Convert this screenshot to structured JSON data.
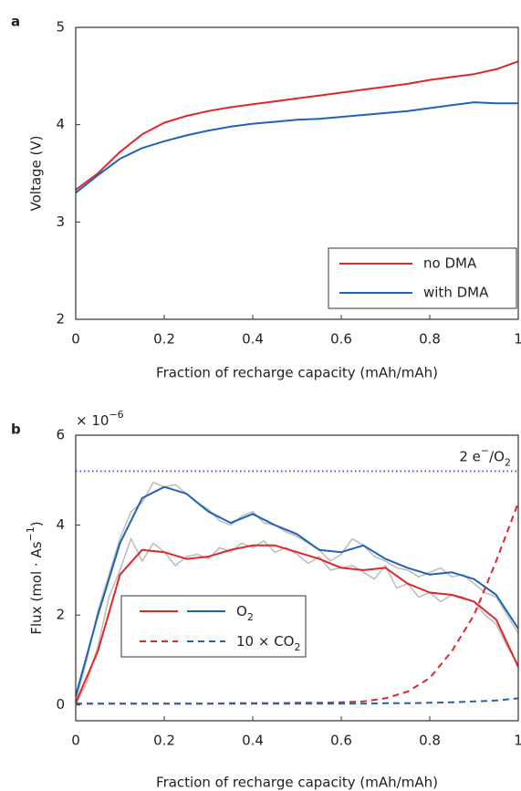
{
  "chart_data": [
    {
      "type": "line",
      "panel_label": "a",
      "x_label": "Fraction of recharge capacity (mAh/mAh)",
      "y_label": "Voltage (V)",
      "xlim": [
        0,
        1
      ],
      "xticks": [
        0,
        0.2,
        0.4,
        0.6,
        0.8,
        1
      ],
      "ylim": [
        2,
        5
      ],
      "yticks": [
        2,
        3,
        4,
        5
      ],
      "legend_position": "lower right",
      "series": [
        {
          "name": "no DMA",
          "color": "#e0262b",
          "dash": false,
          "x": [
            0,
            0.05,
            0.1,
            0.15,
            0.2,
            0.25,
            0.3,
            0.35,
            0.4,
            0.45,
            0.5,
            0.55,
            0.6,
            0.65,
            0.7,
            0.75,
            0.8,
            0.85,
            0.9,
            0.95,
            1
          ],
          "values": [
            3.33,
            3.5,
            3.72,
            3.9,
            4.02,
            4.09,
            4.14,
            4.18,
            4.21,
            4.24,
            4.27,
            4.3,
            4.33,
            4.36,
            4.39,
            4.42,
            4.46,
            4.49,
            4.52,
            4.57,
            4.65
          ]
        },
        {
          "name": "with DMA",
          "color": "#1f64b4",
          "dash": false,
          "x": [
            0,
            0.05,
            0.1,
            0.15,
            0.2,
            0.25,
            0.3,
            0.35,
            0.4,
            0.45,
            0.5,
            0.55,
            0.6,
            0.65,
            0.7,
            0.75,
            0.8,
            0.85,
            0.9,
            0.95,
            1
          ],
          "values": [
            3.3,
            3.48,
            3.65,
            3.76,
            3.83,
            3.89,
            3.94,
            3.98,
            4.01,
            4.03,
            4.05,
            4.06,
            4.08,
            4.1,
            4.12,
            4.14,
            4.17,
            4.2,
            4.23,
            4.22,
            4.22
          ]
        }
      ]
    },
    {
      "type": "line",
      "panel_label": "b",
      "x_label": "Fraction of recharge capacity (mAh/mAh)",
      "y_label": [
        "Flux (mol · As",
        "−1",
        ")"
      ],
      "y_multiplier": [
        "× 10",
        "−6"
      ],
      "xlim": [
        0,
        1
      ],
      "xticks": [
        0,
        0.2,
        0.4,
        0.6,
        0.8,
        1
      ],
      "ylim": [
        -0.35,
        6
      ],
      "yticks": [
        0,
        2,
        4,
        6
      ],
      "reference_line": {
        "value": 5.2,
        "color": "#5a50c8",
        "label": [
          "2 e",
          "−",
          "/O",
          "2"
        ]
      },
      "legend_position": "lower left",
      "legend": [
        {
          "label": [
            "O",
            "2"
          ],
          "colors": [
            "#e0262b",
            "#1f64b4"
          ],
          "dash": false
        },
        {
          "label": [
            "10 × CO",
            "2"
          ],
          "colors": [
            "#e0262b",
            "#1f64b4"
          ],
          "dash": true
        }
      ],
      "series": [
        {
          "color": "#bbbbbb",
          "dash": false,
          "x": [
            0,
            0.025,
            0.05,
            0.075,
            0.1,
            0.125,
            0.15,
            0.175,
            0.2,
            0.225,
            0.25,
            0.275,
            0.3,
            0.325,
            0.35,
            0.375,
            0.4,
            0.425,
            0.45,
            0.475,
            0.5,
            0.525,
            0.55,
            0.575,
            0.6,
            0.625,
            0.65,
            0.675,
            0.7,
            0.725,
            0.75,
            0.775,
            0.8,
            0.825,
            0.85,
            0.875,
            0.9,
            0.925,
            0.95,
            0.975,
            1
          ],
          "values": [
            0.1,
            1.0,
            2.1,
            2.9,
            3.7,
            4.3,
            4.5,
            4.95,
            4.85,
            4.9,
            4.7,
            4.5,
            4.35,
            4.1,
            4.0,
            4.2,
            4.3,
            4.05,
            4.0,
            3.85,
            3.75,
            3.6,
            3.45,
            3.2,
            3.35,
            3.7,
            3.55,
            3.3,
            3.2,
            3.05,
            3.0,
            2.85,
            2.95,
            3.05,
            2.85,
            2.9,
            2.7,
            2.5,
            2.4,
            2.0,
            1.6
          ]
        },
        {
          "color": "#bbbbbb",
          "dash": false,
          "x": [
            0,
            0.025,
            0.05,
            0.075,
            0.1,
            0.125,
            0.15,
            0.175,
            0.2,
            0.225,
            0.25,
            0.275,
            0.3,
            0.325,
            0.35,
            0.375,
            0.4,
            0.425,
            0.45,
            0.475,
            0.5,
            0.525,
            0.55,
            0.575,
            0.6,
            0.625,
            0.65,
            0.675,
            0.7,
            0.725,
            0.75,
            0.775,
            0.8,
            0.825,
            0.85,
            0.875,
            0.9,
            0.925,
            0.95,
            0.975,
            1
          ],
          "values": [
            0.0,
            0.5,
            1.3,
            2.4,
            3.0,
            3.7,
            3.2,
            3.6,
            3.4,
            3.1,
            3.3,
            3.35,
            3.25,
            3.5,
            3.4,
            3.6,
            3.5,
            3.65,
            3.4,
            3.5,
            3.35,
            3.15,
            3.3,
            3.0,
            3.05,
            3.1,
            2.95,
            2.8,
            3.1,
            2.6,
            2.7,
            2.4,
            2.5,
            2.3,
            2.45,
            2.4,
            2.3,
            2.0,
            1.8,
            1.3,
            0.9
          ]
        },
        {
          "color": "#1f64b4",
          "dash": false,
          "x": [
            0,
            0.05,
            0.1,
            0.15,
            0.2,
            0.25,
            0.3,
            0.35,
            0.4,
            0.45,
            0.5,
            0.55,
            0.6,
            0.65,
            0.7,
            0.75,
            0.8,
            0.85,
            0.9,
            0.95,
            1
          ],
          "values": [
            0.2,
            2.0,
            3.6,
            4.6,
            4.85,
            4.7,
            4.3,
            4.05,
            4.25,
            4.0,
            3.8,
            3.45,
            3.4,
            3.55,
            3.25,
            3.05,
            2.9,
            2.95,
            2.8,
            2.45,
            1.7
          ]
        },
        {
          "color": "#e0262b",
          "dash": false,
          "x": [
            0,
            0.05,
            0.1,
            0.15,
            0.2,
            0.25,
            0.3,
            0.35,
            0.4,
            0.45,
            0.5,
            0.55,
            0.6,
            0.65,
            0.7,
            0.75,
            0.8,
            0.85,
            0.9,
            0.95,
            1
          ],
          "values": [
            0.05,
            1.2,
            2.9,
            3.45,
            3.4,
            3.25,
            3.3,
            3.45,
            3.55,
            3.55,
            3.4,
            3.25,
            3.05,
            3.0,
            3.05,
            2.7,
            2.5,
            2.45,
            2.3,
            1.9,
            0.85
          ]
        },
        {
          "color": "#e0262b",
          "dash": true,
          "x": [
            0,
            0.05,
            0.1,
            0.15,
            0.2,
            0.25,
            0.3,
            0.35,
            0.4,
            0.45,
            0.5,
            0.55,
            0.6,
            0.65,
            0.7,
            0.75,
            0.8,
            0.85,
            0.9,
            0.95,
            1
          ],
          "values": [
            0.03,
            0.03,
            0.03,
            0.03,
            0.03,
            0.03,
            0.03,
            0.04,
            0.04,
            0.04,
            0.05,
            0.05,
            0.06,
            0.08,
            0.15,
            0.3,
            0.6,
            1.2,
            2.0,
            3.2,
            4.5
          ]
        },
        {
          "color": "#1f64b4",
          "dash": true,
          "x": [
            0,
            0.05,
            0.1,
            0.15,
            0.2,
            0.25,
            0.3,
            0.35,
            0.4,
            0.45,
            0.5,
            0.55,
            0.6,
            0.65,
            0.7,
            0.75,
            0.8,
            0.85,
            0.9,
            0.95,
            1
          ],
          "values": [
            0.03,
            0.03,
            0.03,
            0.03,
            0.03,
            0.03,
            0.03,
            0.03,
            0.03,
            0.03,
            0.03,
            0.03,
            0.03,
            0.03,
            0.04,
            0.04,
            0.05,
            0.06,
            0.08,
            0.1,
            0.15
          ]
        }
      ]
    }
  ]
}
